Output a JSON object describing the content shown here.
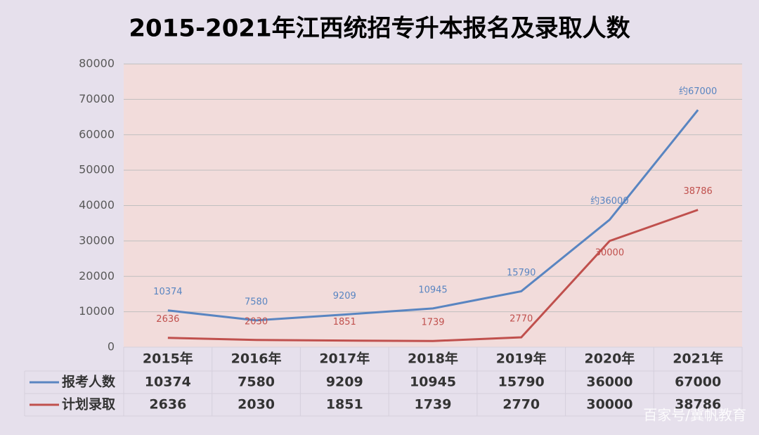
{
  "chart_data": {
    "type": "line",
    "title": "2015-2021年江西统招专升本报名及录取人数",
    "categories": [
      "2015年",
      "2016年",
      "2017年",
      "2018年",
      "2019年",
      "2020年",
      "2021年"
    ],
    "series": [
      {
        "name": "报考人数",
        "color": "#5985c1",
        "values": [
          10374,
          7580,
          9209,
          10945,
          15790,
          36000,
          67000
        ],
        "value_labels": [
          "10374",
          "7580",
          "9209",
          "10945",
          "15790",
          "约36000",
          "约67000"
        ]
      },
      {
        "name": "计划录取",
        "color": "#c0504d",
        "values": [
          2636,
          2030,
          1851,
          1739,
          2770,
          30000,
          38786
        ]
      }
    ],
    "ylim": [
      0,
      80000
    ],
    "yticks": [
      0,
      10000,
      20000,
      30000,
      40000,
      50000,
      60000,
      70000,
      80000
    ],
    "grid": true,
    "watermark": "百家号/冀帆教育"
  }
}
